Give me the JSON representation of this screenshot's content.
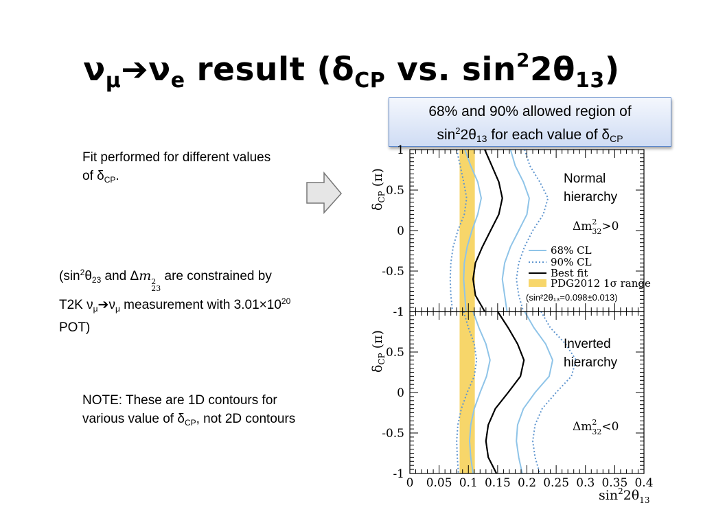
{
  "slide": {
    "title": {
      "part1": "ν",
      "sub1": "μ",
      "arrow": "➔",
      "part2": "ν",
      "sub2": "e",
      "part3": " result (δ",
      "sub3": "CP",
      "part4": " vs. sin",
      "sup4": "2",
      "part5": "2θ",
      "sub5": "13",
      "part6": ")"
    },
    "callout": {
      "line1": "68% and 90% allowed region of",
      "l2a": "sin",
      "l2sup": "2",
      "l2b": "2θ",
      "l2sub": "13",
      "l2c": " for each value of δ",
      "l2sub2": "CP"
    },
    "fit_note": {
      "line1": "Fit performed for different values",
      "l2a": "of δ",
      "l2sub": "CP",
      "l2b": "."
    },
    "constraint_note": {
      "a": "(sin",
      "sup1": "2",
      "b": "θ",
      "sub1": "23",
      "c": " and Δ",
      "m": "m",
      "msup": "2",
      "msub": "23",
      "d": " are constrained by",
      "e": "T2K ν",
      "sub2": "μ",
      "arrow": "➔",
      "f": "ν",
      "sub3": "μ",
      "g": " measurement with 3.01×10",
      "sup2": "20",
      "h": "POT)"
    },
    "contour_note": {
      "line1": "NOTE: These are 1D contours for",
      "l2a": "various value of δ",
      "l2sub": "CP",
      "l2b": ", not 2D contours"
    }
  },
  "chart_data": [
    {
      "type": "line",
      "panel": "top",
      "hierarchy_label_line1": "Normal",
      "hierarchy_label_line2": "hierarchy",
      "dm_label": "Δm",
      "dm_sup": "2",
      "dm_sub": "32",
      "dm_rel": ">0",
      "xlim": [
        0,
        0.4
      ],
      "ylim": [
        -1,
        1
      ],
      "ylabel": "δ",
      "ylabel_sub": "CP",
      "ylabel_unit": " (π)",
      "yticks": [
        "1",
        "0.5",
        "0",
        "-0.5",
        "-1"
      ],
      "pdg_band": [
        0.085,
        0.111
      ],
      "legend": {
        "cl68": "68% CL",
        "cl90": "90% CL",
        "best": "Best fit",
        "pdg": "PDG2012 1σ range",
        "pdg_note": "(sin²2θ₁₃=0.098±0.013)"
      },
      "series": [
        {
          "name": "Best fit",
          "style": "solid-black",
          "x": [
            0.128,
            0.14,
            0.152,
            0.158,
            0.152,
            0.138,
            0.124,
            0.112,
            0.108,
            0.112,
            0.128
          ],
          "y": [
            1,
            0.8,
            0.6,
            0.4,
            0.2,
            0,
            -0.2,
            -0.4,
            -0.6,
            -0.8,
            -1
          ]
        },
        {
          "name": "68% CL",
          "style": "solid-blue",
          "x": [
            0.094,
            0.104,
            0.116,
            0.122,
            0.116,
            0.106,
            0.098,
            0.093,
            0.092,
            0.094,
            0.096
          ],
          "y": [
            1,
            0.8,
            0.6,
            0.4,
            0.2,
            0,
            -0.2,
            -0.4,
            -0.6,
            -0.8,
            -1
          ]
        },
        {
          "name": "68% CL",
          "style": "solid-blue",
          "x": [
            0.172,
            0.18,
            0.194,
            0.204,
            0.2,
            0.186,
            0.172,
            0.162,
            0.158,
            0.162,
            0.166
          ],
          "y": [
            1,
            0.8,
            0.6,
            0.4,
            0.2,
            0,
            -0.2,
            -0.4,
            -0.6,
            -0.8,
            -1
          ]
        },
        {
          "name": "90% CL",
          "style": "dotted-blue",
          "x": [
            0.08,
            0.086,
            0.092,
            0.097,
            0.093,
            0.082,
            0.074,
            0.07,
            0.069,
            0.07,
            0.073
          ],
          "y": [
            1,
            0.8,
            0.6,
            0.4,
            0.2,
            0,
            -0.2,
            -0.4,
            -0.6,
            -0.8,
            -1
          ]
        },
        {
          "name": "90% CL",
          "style": "dotted-blue",
          "x": [
            0.196,
            0.205,
            0.222,
            0.236,
            0.228,
            0.21,
            0.196,
            0.186,
            0.182,
            0.186,
            0.194
          ],
          "y": [
            1,
            0.8,
            0.6,
            0.4,
            0.2,
            0,
            -0.2,
            -0.4,
            -0.6,
            -0.8,
            -1
          ]
        }
      ]
    },
    {
      "type": "line",
      "panel": "bottom",
      "hierarchy_label_line1": "Inverted",
      "hierarchy_label_line2": "hierarchy",
      "dm_label": "Δm",
      "dm_sup": "2",
      "dm_sub": "32",
      "dm_rel": "<0",
      "xlim": [
        0,
        0.4
      ],
      "ylim": [
        -1,
        1
      ],
      "xlabel": "sin",
      "xlabel_sup": "2",
      "xlabel_mid": "2θ",
      "xlabel_sub": "13",
      "ylabel": "δ",
      "ylabel_sub": "CP",
      "ylabel_unit": " (π)",
      "xticks": [
        "0",
        "0.05",
        "0.1",
        "0.15",
        "0.2",
        "0.25",
        "0.3",
        "0.35",
        "0.4"
      ],
      "yticks": [
        "1",
        "0.5",
        "0",
        "-0.5",
        "-1"
      ],
      "pdg_band": [
        0.085,
        0.111
      ],
      "series": [
        {
          "name": "Best fit",
          "style": "solid-black",
          "x": [
            0.15,
            0.168,
            0.184,
            0.195,
            0.189,
            0.168,
            0.146,
            0.134,
            0.13,
            0.134,
            0.148
          ],
          "y": [
            1,
            0.8,
            0.6,
            0.4,
            0.2,
            0,
            -0.2,
            -0.4,
            -0.6,
            -0.8,
            -1
          ]
        },
        {
          "name": "68% CL",
          "style": "solid-blue",
          "x": [
            0.108,
            0.118,
            0.13,
            0.137,
            0.131,
            0.12,
            0.11,
            0.104,
            0.102,
            0.104,
            0.108
          ],
          "y": [
            1,
            0.8,
            0.6,
            0.4,
            0.2,
            0,
            -0.2,
            -0.4,
            -0.6,
            -0.8,
            -1
          ]
        },
        {
          "name": "68% CL",
          "style": "solid-blue",
          "x": [
            0.196,
            0.212,
            0.232,
            0.244,
            0.238,
            0.214,
            0.194,
            0.184,
            0.182,
            0.186,
            0.192
          ],
          "y": [
            1,
            0.8,
            0.6,
            0.4,
            0.2,
            0,
            -0.2,
            -0.4,
            -0.6,
            -0.8,
            -1
          ]
        },
        {
          "name": "90% CL",
          "style": "dotted-blue",
          "x": [
            0.092,
            0.1,
            0.11,
            0.114,
            0.11,
            0.098,
            0.088,
            0.082,
            0.08,
            0.081,
            0.083
          ],
          "y": [
            1,
            0.8,
            0.6,
            0.4,
            0.2,
            0,
            -0.2,
            -0.4,
            -0.6,
            -0.8,
            -1
          ]
        },
        {
          "name": "90% CL",
          "style": "dotted-blue",
          "x": [
            0.224,
            0.24,
            0.266,
            0.284,
            0.276,
            0.25,
            0.226,
            0.214,
            0.21,
            0.214,
            0.222
          ],
          "y": [
            1,
            0.8,
            0.6,
            0.4,
            0.2,
            0,
            -0.2,
            -0.4,
            -0.6,
            -0.8,
            -1
          ]
        }
      ]
    }
  ],
  "colors": {
    "pdg_band": "#f7d66a",
    "cl68": "#8fc4e8",
    "cl90": "#5f95cf",
    "best": "#000000",
    "callout_border": "#5b86c9"
  }
}
